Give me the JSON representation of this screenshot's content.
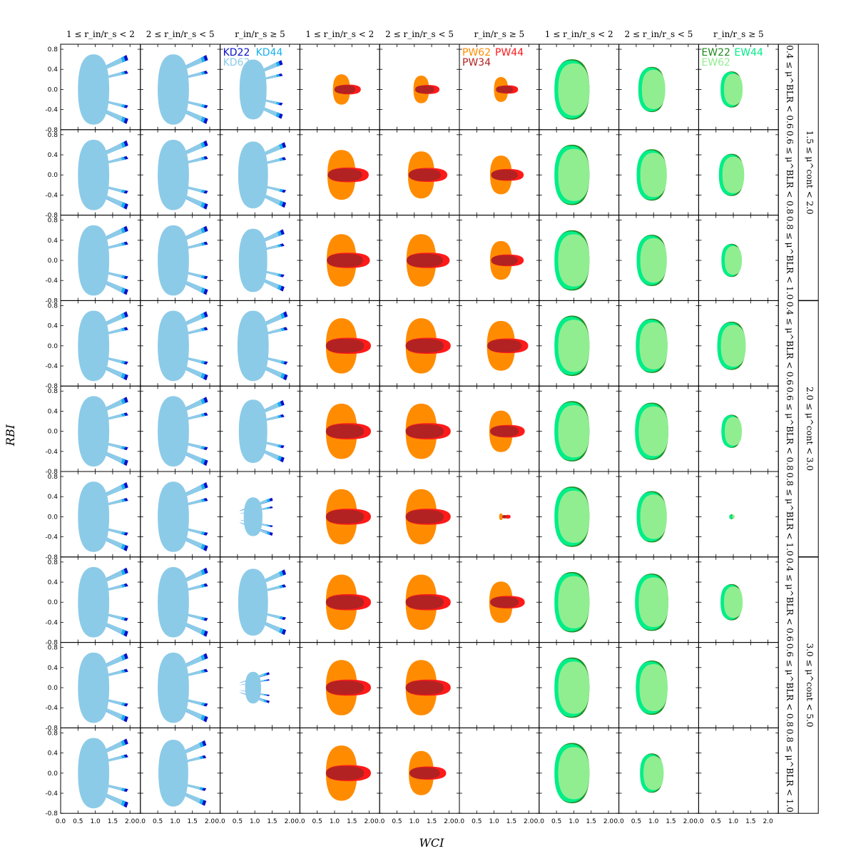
{
  "chart_data": {
    "type": "scatter",
    "xlabel": "WCI",
    "ylabel": "RBI",
    "xlim": [
      0.0,
      2.3
    ],
    "ylim": [
      -0.8,
      0.9
    ],
    "x_ticks": [
      "0.0",
      "0.5",
      "1.0",
      "1.5",
      "2.0"
    ],
    "y_ticks": [
      "-0.8",
      "-0.4",
      "0.0",
      "0.4",
      "0.8"
    ],
    "column_titles": [
      "1 ≤ r_in/r_s < 2",
      "2 ≤ r_in/r_s < 5",
      "r_in/r_s ≥ 5",
      "1 ≤ r_in/r_s < 2",
      "2 ≤ r_in/r_s < 5",
      "r_in/r_s ≥ 5",
      "1 ≤ r_in/r_s < 2",
      "2 ≤ r_in/r_s < 5",
      "r_in/r_s ≥ 5"
    ],
    "row_titles": [
      "0.4 ≤ μ^BLR < 0.6",
      "0.6 ≤ μ^BLR < 0.8",
      "0.8 ≤ μ^BLR < 1.0",
      "0.4 ≤ μ^BLR < 0.6",
      "0.6 ≤ μ^BLR < 0.8",
      "0.8 ≤ μ^BLR < 1.0",
      "0.4 ≤ μ^BLR < 0.6",
      "0.6 ≤ μ^BLR < 0.8",
      "0.8 ≤ μ^BLR < 1.0"
    ],
    "group_titles": [
      "1.5 ≤ μ^cont < 2.0",
      "2.0 ≤ μ^cont < 3.0",
      "3.0 ≤ μ^cont < 5.0"
    ],
    "model_groups": [
      {
        "family": "KD",
        "series": [
          {
            "name": "KD22",
            "color": "#0a10c8"
          },
          {
            "name": "KD44",
            "color": "#1ab0f0"
          },
          {
            "name": "KD62",
            "color": "#8ccbe8"
          }
        ]
      },
      {
        "family": "PW",
        "series": [
          {
            "name": "PW62",
            "color": "#ff8c00"
          },
          {
            "name": "PW44",
            "color": "#ff1a1a"
          },
          {
            "name": "PW34",
            "color": "#b22222"
          }
        ]
      },
      {
        "family": "EW",
        "series": [
          {
            "name": "EW22",
            "color": "#228b22"
          },
          {
            "name": "EW44",
            "color": "#00ee88"
          },
          {
            "name": "EW62",
            "color": "#90ee90"
          }
        ]
      }
    ],
    "panel_scale": [
      [
        1.0,
        1.0,
        0.85,
        0.55,
        0.5,
        0.45,
        1.0,
        0.75,
        0.6
      ],
      [
        1.0,
        1.0,
        0.95,
        0.9,
        0.85,
        0.7,
        1.0,
        0.85,
        0.7
      ],
      [
        1.0,
        1.0,
        0.9,
        0.95,
        0.95,
        0.7,
        1.0,
        0.85,
        0.55
      ],
      [
        1.0,
        1.0,
        1.0,
        1.0,
        1.0,
        0.9,
        1.0,
        0.9,
        0.8
      ],
      [
        1.0,
        1.0,
        0.9,
        1.0,
        1.0,
        0.75,
        1.0,
        0.95,
        0.55
      ],
      [
        1.0,
        1.0,
        0.55,
        1.0,
        1.0,
        0.12,
        1.0,
        0.85,
        0.08
      ],
      [
        1.0,
        1.0,
        0.95,
        1.0,
        1.0,
        0.75,
        1.0,
        0.95,
        0.6
      ],
      [
        1.0,
        1.0,
        0.45,
        1.0,
        1.0,
        0.0,
        1.0,
        0.9,
        0.0
      ],
      [
        1.0,
        0.95,
        0.0,
        1.0,
        0.8,
        0.0,
        1.0,
        0.65,
        0.0
      ]
    ]
  }
}
